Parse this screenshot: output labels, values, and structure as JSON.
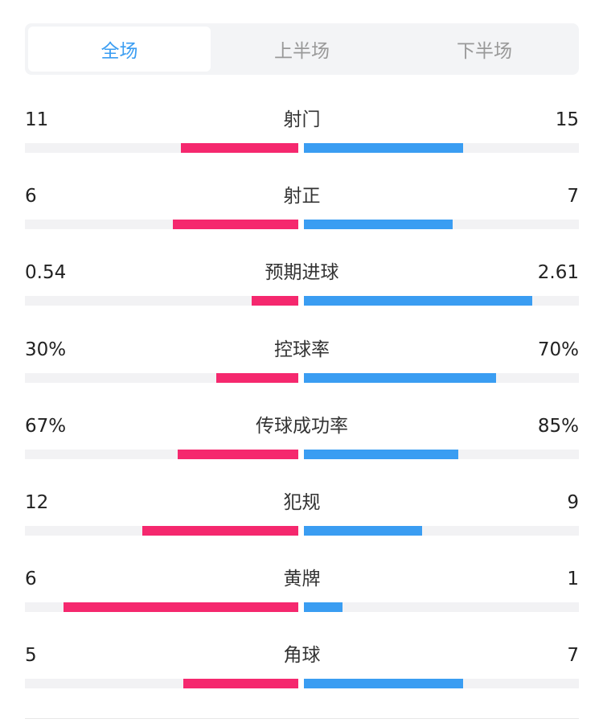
{
  "tabs": [
    {
      "label": "全场",
      "active": true
    },
    {
      "label": "上半场",
      "active": false
    },
    {
      "label": "下半场",
      "active": false
    }
  ],
  "colors": {
    "home": "#f5286e",
    "away": "#3a9df2",
    "track": "#f2f2f4",
    "active_tab": "#3a9df2"
  },
  "stats": [
    {
      "name": "shots",
      "label": "射门",
      "left": "11",
      "right": "15",
      "left_fill": 0.43,
      "right_fill": 0.58
    },
    {
      "name": "shots-on-target",
      "label": "射正",
      "left": "6",
      "right": "7",
      "left_fill": 0.46,
      "right_fill": 0.54
    },
    {
      "name": "xg",
      "label": "预期进球",
      "left": "0.54",
      "right": "2.61",
      "left_fill": 0.17,
      "right_fill": 0.83
    },
    {
      "name": "possession",
      "label": "控球率",
      "left": "30%",
      "right": "70%",
      "left_fill": 0.3,
      "right_fill": 0.7
    },
    {
      "name": "pass-accuracy",
      "label": "传球成功率",
      "left": "67%",
      "right": "85%",
      "left_fill": 0.44,
      "right_fill": 0.56
    },
    {
      "name": "fouls",
      "label": "犯规",
      "left": "12",
      "right": "9",
      "left_fill": 0.57,
      "right_fill": 0.43
    },
    {
      "name": "yellow-cards",
      "label": "黄牌",
      "left": "6",
      "right": "1",
      "left_fill": 0.86,
      "right_fill": 0.14
    },
    {
      "name": "corners",
      "label": "角球",
      "left": "5",
      "right": "7",
      "left_fill": 0.42,
      "right_fill": 0.58
    }
  ]
}
